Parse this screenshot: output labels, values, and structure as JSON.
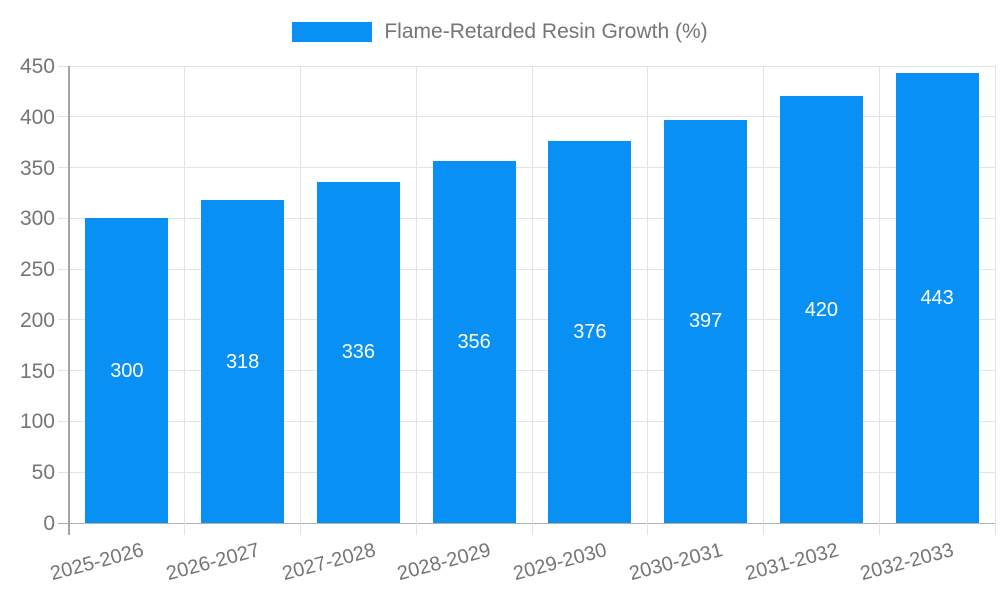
{
  "legend": {
    "label": "Flame-Retarded Resin Growth (%)"
  },
  "chart_data": {
    "type": "bar",
    "title": "",
    "legend_label": "Flame-Retarded Resin Growth (%)",
    "legend_position": "top-center",
    "categories": [
      "2025-2026",
      "2026-2027",
      "2027-2028",
      "2028-2029",
      "2029-2030",
      "2030-2031",
      "2031-2032",
      "2032-2033"
    ],
    "values": [
      300,
      318,
      336,
      356,
      376,
      397,
      420,
      443
    ],
    "value_labels": [
      "300",
      "318",
      "336",
      "356",
      "376",
      "397",
      "420",
      "443"
    ],
    "value_label_position": "inside-center",
    "xlabel": "",
    "ylabel": "",
    "ylim": [
      0,
      450
    ],
    "ytick_step": 50,
    "ytick_labels": [
      "0",
      "50",
      "100",
      "150",
      "200",
      "250",
      "300",
      "350",
      "400",
      "450"
    ],
    "grid": true,
    "colors": {
      "bar": "#0990f5",
      "value_label": "#ffffff",
      "gridline": "#e3e3e3",
      "axis_line": "#a3a3a3",
      "baseline": "#b0b0b0",
      "tick_text": "#757575",
      "background": "#ffffff"
    }
  }
}
